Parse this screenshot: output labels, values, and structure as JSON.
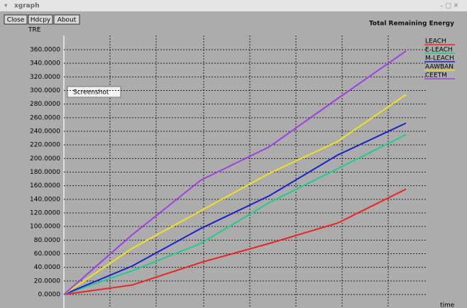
{
  "window": {
    "title": "xgraph",
    "buttons": [
      "Close",
      "Hdcpy",
      "About"
    ],
    "tooltip": "Screenshot"
  },
  "chart_data": {
    "type": "line",
    "title": "Total Remaining Energy",
    "y_label": "TRE",
    "x_label": "time",
    "categories": [
      null,
      null,
      null,
      null,
      null,
      null
    ],
    "series": [
      {
        "name": "LEACH",
        "color": "#ee2222",
        "values": [
          0,
          14,
          47,
          75,
          105,
          155
        ]
      },
      {
        "name": "E-LEACH",
        "color": "#22cc88",
        "values": [
          0,
          35,
          75,
          135,
          185,
          235
        ]
      },
      {
        "name": "M-LEACH",
        "color": "#1a22cc",
        "values": [
          0,
          42,
          97,
          145,
          205,
          252
        ]
      },
      {
        "name": "AAWBAN",
        "color": "#f0e020",
        "values": [
          0,
          68,
          123,
          178,
          225,
          294
        ]
      },
      {
        "name": "CEETM",
        "color": "#a040e0",
        "values": [
          0,
          88,
          168,
          217,
          288,
          358
        ]
      }
    ],
    "ylim": [
      0,
      360
    ],
    "yticks": [
      {
        "value": 0,
        "label": "0.0000"
      },
      {
        "value": 20,
        "label": "20.0000"
      },
      {
        "value": 40,
        "label": "40.0000"
      },
      {
        "value": 60,
        "label": "60.0000"
      },
      {
        "value": 80,
        "label": "80.0000"
      },
      {
        "value": 100,
        "label": "100.0000"
      },
      {
        "value": 120,
        "label": "120.0000"
      },
      {
        "value": 140,
        "label": "140.0000"
      },
      {
        "value": 160,
        "label": "160.0000"
      },
      {
        "value": 180,
        "label": "180.0000"
      },
      {
        "value": 200,
        "label": "200.0000"
      },
      {
        "value": 220,
        "label": "220.0000"
      },
      {
        "value": 240,
        "label": "240.0000"
      },
      {
        "value": 260,
        "label": "260.0000"
      },
      {
        "value": 280,
        "label": "280.0000"
      },
      {
        "value": 300,
        "label": "300.0000"
      },
      {
        "value": 320,
        "label": "320.0000"
      },
      {
        "value": 340,
        "label": "340.0000"
      },
      {
        "value": 360,
        "label": "360.0000"
      }
    ],
    "grid": true,
    "legend": "right"
  }
}
